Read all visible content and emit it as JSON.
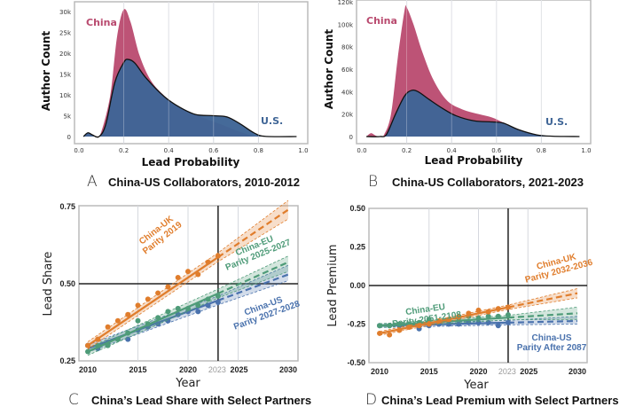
{
  "colors": {
    "china": "#b94a6f",
    "us": "#3f6596",
    "us_light": "#5e8fbd",
    "uk_series": "#e07d2c",
    "eu_series": "#4e9b78",
    "us_series": "#4a72ad"
  },
  "chart_data": [
    {
      "type": "area",
      "panel_letter": "A",
      "title": "China-US Collaborators, 2010-2012",
      "xlabel": "Lead Probability",
      "ylabel": "Author Count",
      "xlim": [
        0,
        1
      ],
      "ylim": [
        0,
        30000
      ],
      "xticks": [
        "0.0",
        "0.2",
        "0.4",
        "0.6",
        "0.8",
        "1.0"
      ],
      "yticks": [
        "0",
        "5k",
        "10k",
        "15k",
        "20k",
        "25k",
        "30k"
      ],
      "grid": "vertical",
      "series": [
        {
          "name": "China",
          "points": [
            [
              0.02,
              0
            ],
            [
              0.04,
              900
            ],
            [
              0.06,
              400
            ],
            [
              0.08,
              0
            ],
            [
              0.1,
              1200
            ],
            [
              0.14,
              10000
            ],
            [
              0.17,
              24000
            ],
            [
              0.2,
              30500
            ],
            [
              0.23,
              27500
            ],
            [
              0.27,
              19500
            ],
            [
              0.32,
              13500
            ],
            [
              0.38,
              9800
            ],
            [
              0.45,
              7000
            ],
            [
              0.5,
              5600
            ],
            [
              0.56,
              4400
            ],
            [
              0.63,
              3000
            ],
            [
              0.7,
              1500
            ],
            [
              0.78,
              100
            ],
            [
              0.8,
              0
            ]
          ]
        },
        {
          "name": "U.S.",
          "points": [
            [
              0.02,
              0
            ],
            [
              0.04,
              900
            ],
            [
              0.06,
              400
            ],
            [
              0.09,
              0
            ],
            [
              0.12,
              3000
            ],
            [
              0.16,
              13000
            ],
            [
              0.2,
              17800
            ],
            [
              0.22,
              18500
            ],
            [
              0.25,
              17600
            ],
            [
              0.3,
              14000
            ],
            [
              0.38,
              9600
            ],
            [
              0.45,
              7000
            ],
            [
              0.52,
              5300
            ],
            [
              0.6,
              5000
            ],
            [
              0.66,
              4700
            ],
            [
              0.72,
              3000
            ],
            [
              0.78,
              900
            ],
            [
              0.83,
              50
            ],
            [
              0.97,
              0
            ]
          ]
        }
      ]
    },
    {
      "type": "area",
      "panel_letter": "B",
      "title": "China-US Collaborators, 2021-2023",
      "xlabel": "Lead Probability",
      "ylabel": "Author Count",
      "xlim": [
        0,
        1
      ],
      "ylim": [
        0,
        120000
      ],
      "xticks": [
        "0.0",
        "0.2",
        "0.4",
        "0.6",
        "0.8",
        "1.0"
      ],
      "yticks": [
        "0",
        "20k",
        "40k",
        "60k",
        "80k",
        "100k",
        "120k"
      ],
      "grid": "vertical",
      "series": [
        {
          "name": "China",
          "points": [
            [
              0.02,
              0
            ],
            [
              0.04,
              3000
            ],
            [
              0.06,
              1000
            ],
            [
              0.08,
              0
            ],
            [
              0.1,
              2000
            ],
            [
              0.13,
              20000
            ],
            [
              0.16,
              70000
            ],
            [
              0.19,
              112000
            ],
            [
              0.2,
              115000
            ],
            [
              0.23,
              100000
            ],
            [
              0.27,
              75000
            ],
            [
              0.32,
              50000
            ],
            [
              0.38,
              32000
            ],
            [
              0.45,
              24000
            ],
            [
              0.52,
              20000
            ],
            [
              0.58,
              17000
            ],
            [
              0.63,
              12500
            ],
            [
              0.68,
              8000
            ],
            [
              0.75,
              3000
            ],
            [
              0.8,
              500
            ],
            [
              0.85,
              0
            ]
          ]
        },
        {
          "name": "U.S.",
          "points": [
            [
              0.02,
              0
            ],
            [
              0.08,
              0
            ],
            [
              0.11,
              2000
            ],
            [
              0.15,
              20000
            ],
            [
              0.19,
              36000
            ],
            [
              0.22,
              41000
            ],
            [
              0.25,
              40000
            ],
            [
              0.3,
              33000
            ],
            [
              0.36,
              25000
            ],
            [
              0.42,
              18500
            ],
            [
              0.5,
              14000
            ],
            [
              0.58,
              13000
            ],
            [
              0.63,
              12000
            ],
            [
              0.7,
              6000
            ],
            [
              0.78,
              1500
            ],
            [
              0.85,
              300
            ],
            [
              0.97,
              0
            ]
          ]
        }
      ]
    },
    {
      "type": "scatter",
      "panel_letter": "C",
      "title": "China’s Lead Share with Select Partners",
      "xlabel": "Year",
      "ylabel": "Lead Share",
      "xlim": [
        2009,
        2031
      ],
      "ylim": [
        0.25,
        0.75
      ],
      "xticks": [
        "2010",
        "2015",
        "2020",
        "2023",
        "2025",
        "2030"
      ],
      "yticks": [
        "0.25",
        "0.50",
        "0.75"
      ],
      "reference_y": 0.5,
      "reference_x": 2023,
      "years": [
        2010,
        2011,
        2012,
        2013,
        2014,
        2015,
        2016,
        2017,
        2018,
        2019,
        2020,
        2021,
        2022,
        2023
      ],
      "series": [
        {
          "name": "China-UK",
          "annotation": [
            "China-UK",
            "Parity 2019"
          ],
          "values": [
            0.3,
            0.32,
            0.36,
            0.38,
            0.4,
            0.43,
            0.45,
            0.47,
            0.49,
            0.52,
            0.54,
            0.53,
            0.57,
            0.59
          ],
          "fit": [
            [
              2010,
              0.3
            ],
            [
              2030,
              0.74
            ]
          ],
          "band_2030": [
            0.71,
            0.77
          ]
        },
        {
          "name": "China-EU",
          "annotation": [
            "China-EU",
            "Parity 2025-2027"
          ],
          "values": [
            0.28,
            0.3,
            0.3,
            0.32,
            0.34,
            0.38,
            0.37,
            0.39,
            0.41,
            0.42,
            0.42,
            0.43,
            0.45,
            0.46
          ],
          "fit": [
            [
              2010,
              0.28
            ],
            [
              2030,
              0.57
            ]
          ],
          "band_2030": [
            0.54,
            0.59
          ]
        },
        {
          "name": "China-US",
          "annotation": [
            "China-US",
            "Parity 2027-2028"
          ],
          "values": [
            0.3,
            0.29,
            0.31,
            0.32,
            0.32,
            0.35,
            0.36,
            0.37,
            0.38,
            0.4,
            0.41,
            0.41,
            0.43,
            0.44
          ],
          "fit": [
            [
              2010,
              0.29
            ],
            [
              2030,
              0.53
            ]
          ],
          "band_2030": [
            0.51,
            0.56
          ]
        }
      ]
    },
    {
      "type": "scatter",
      "panel_letter": "D",
      "title": "China’s Lead Premium with Select Partners",
      "xlabel": "Year",
      "ylabel": "Lead Premium",
      "xlim": [
        2009,
        2031
      ],
      "ylim": [
        -0.5,
        0.5
      ],
      "xticks": [
        "2010",
        "2015",
        "2020",
        "2023",
        "2025",
        "2030"
      ],
      "yticks": [
        "-0.50",
        "-0.25",
        "0.00",
        "0.25",
        "0.50"
      ],
      "reference_y": 0,
      "reference_x": 2023,
      "years": [
        2010,
        2011,
        2012,
        2013,
        2014,
        2015,
        2016,
        2017,
        2018,
        2019,
        2020,
        2021,
        2022,
        2023
      ],
      "series": [
        {
          "name": "China-UK",
          "annotation": [
            "China-UK",
            "Parity 2032-2036"
          ],
          "values": [
            -0.31,
            -0.32,
            -0.29,
            -0.27,
            -0.26,
            -0.25,
            -0.23,
            -0.22,
            -0.2,
            -0.18,
            -0.16,
            -0.17,
            -0.15,
            -0.14
          ],
          "fit": [
            [
              2010,
              -0.31
            ],
            [
              2030,
              -0.05
            ]
          ],
          "band_2030": [
            -0.08,
            -0.02
          ]
        },
        {
          "name": "China-EU",
          "annotation": [
            "China-EU",
            "Parity 2051-2108"
          ],
          "values": [
            -0.26,
            -0.26,
            -0.25,
            -0.25,
            -0.24,
            -0.22,
            -0.23,
            -0.22,
            -0.21,
            -0.2,
            -0.21,
            -0.2,
            -0.2,
            -0.19
          ],
          "fit": [
            [
              2010,
              -0.26
            ],
            [
              2030,
              -0.18
            ]
          ],
          "band_2030": [
            -0.22,
            -0.14
          ]
        },
        {
          "name": "China-US",
          "annotation": [
            "China-US",
            "Parity After 2087"
          ],
          "values": [
            -0.26,
            -0.26,
            -0.26,
            -0.26,
            -0.28,
            -0.26,
            -0.25,
            -0.25,
            -0.25,
            -0.24,
            -0.24,
            -0.24,
            -0.26,
            -0.24
          ],
          "fit": [
            [
              2010,
              -0.26
            ],
            [
              2030,
              -0.23
            ]
          ],
          "band_2030": [
            -0.25,
            -0.2
          ]
        }
      ]
    }
  ]
}
